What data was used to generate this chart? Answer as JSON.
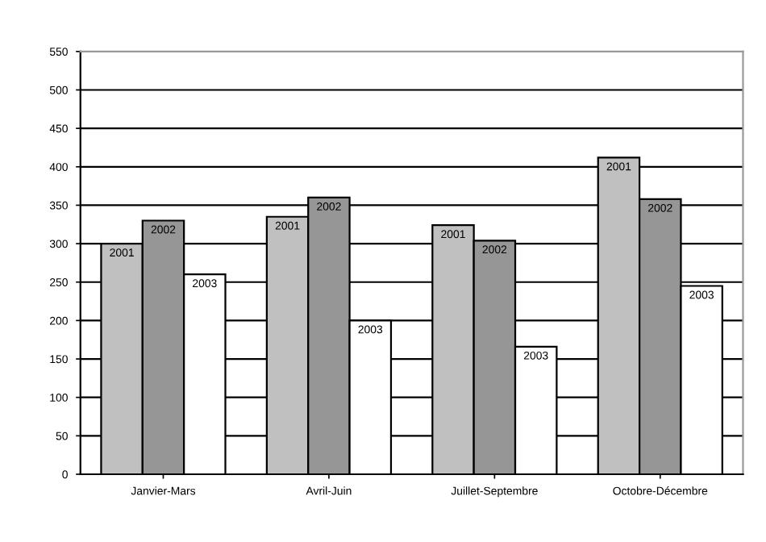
{
  "chart_data": {
    "type": "bar",
    "categories": [
      "Janvier-Mars",
      "Avril-Juin",
      "Juillet-Septembre",
      "Octobre-Décembre"
    ],
    "series": [
      {
        "name": "2001",
        "color": "#c0c0c0",
        "values": [
          300,
          335,
          324,
          412
        ]
      },
      {
        "name": "2002",
        "color": "#969696",
        "values": [
          330,
          360,
          304,
          358
        ]
      },
      {
        "name": "2003",
        "color": "#ffffff",
        "values": [
          260,
          200,
          166,
          245
        ]
      }
    ],
    "ylim": [
      0,
      550
    ],
    "yticks": [
      0,
      50,
      100,
      150,
      200,
      250,
      300,
      350,
      400,
      450,
      500,
      550
    ],
    "grid": "y",
    "legend": false
  }
}
